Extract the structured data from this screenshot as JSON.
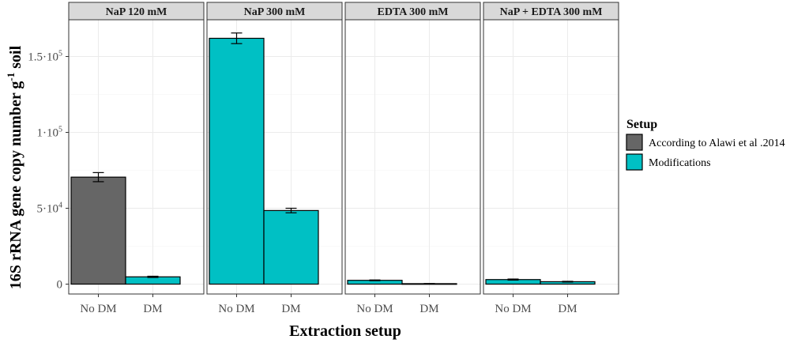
{
  "chart_data": {
    "type": "bar",
    "xlabel": "Extraction setup",
    "ylabel_main": "16S rRNA gene copy number g",
    "ylabel_sup": "-1",
    "ylabel_tail": " soil",
    "ylim": [
      0,
      170000
    ],
    "y_ticks": [
      {
        "value": 0,
        "base": "0",
        "exp": ""
      },
      {
        "value": 50000,
        "base": "5·10",
        "exp": "4"
      },
      {
        "value": 100000,
        "base": "1·10",
        "exp": "5"
      },
      {
        "value": 150000,
        "base": "1.5·10",
        "exp": "5"
      }
    ],
    "categories": [
      "No DM",
      "DM"
    ],
    "grid": true,
    "legend": {
      "title": "Setup",
      "position": "right",
      "entries": [
        {
          "key": "alawi",
          "label": "According to Alawi et al .2014",
          "color": "#666666"
        },
        {
          "key": "mod",
          "label": "Modifications",
          "color": "#00C0C4"
        }
      ]
    },
    "panels": [
      {
        "title": "NaP 120 mM",
        "bars": [
          {
            "category": "No DM",
            "value": 70500,
            "err": 3000,
            "setup": "alawi"
          },
          {
            "category": "DM",
            "value": 4800,
            "err": 400,
            "setup": "mod"
          }
        ]
      },
      {
        "title": "NaP 300 mM",
        "bars": [
          {
            "category": "No DM",
            "value": 162000,
            "err": 3500,
            "setup": "mod"
          },
          {
            "category": "DM",
            "value": 48500,
            "err": 1500,
            "setup": "mod"
          }
        ]
      },
      {
        "title": "EDTA 300 mM",
        "bars": [
          {
            "category": "No DM",
            "value": 2500,
            "err": 250,
            "setup": "mod"
          },
          {
            "category": "DM",
            "value": 300,
            "err": 80,
            "setup": "mod"
          }
        ]
      },
      {
        "title": "NaP + EDTA 300 mM",
        "bars": [
          {
            "category": "No DM",
            "value": 3000,
            "err": 350,
            "setup": "mod"
          },
          {
            "category": "DM",
            "value": 1600,
            "err": 250,
            "setup": "mod"
          }
        ]
      }
    ]
  }
}
